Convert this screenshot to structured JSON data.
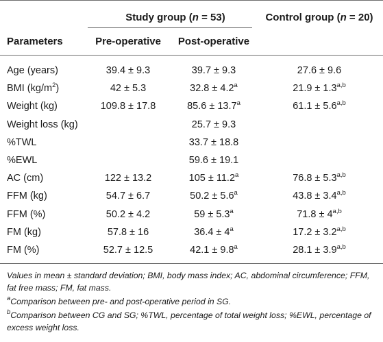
{
  "table": {
    "header": {
      "study_group": "Study group (n = 53)",
      "study_group_text": "Study group (",
      "study_group_n": "n",
      "study_group_rest": " = 53)",
      "control_group_text": "Control group (",
      "control_group_n": "n",
      "control_group_rest": " = 20)",
      "parameters": "Parameters",
      "pre_operative": "Pre-operative",
      "post_operative": "Post-operative"
    },
    "rows": [
      {
        "param": "Age (years)",
        "pre": "39.4 ± 9.3",
        "post": "39.7 ± 9.3",
        "post_sup": "",
        "control": "27.6 ± 9.6",
        "control_sup": ""
      },
      {
        "param": "BMI (kg/m",
        "param_sup": "2",
        "param_tail": ")",
        "pre": "42 ± 5.3",
        "post": "32.8 ± 4.2",
        "post_sup": "a",
        "control": "21.9 ± 1.3",
        "control_sup": "a,b"
      },
      {
        "param": "Weight (kg)",
        "pre": "109.8 ± 17.8",
        "post": "85.6 ± 13.7",
        "post_sup": "a",
        "control": "61.1 ± 5.6",
        "control_sup": "a,b"
      },
      {
        "param": "Weight loss (kg)",
        "pre": "",
        "post": "25.7 ± 9.3",
        "post_sup": "",
        "control": "",
        "control_sup": ""
      },
      {
        "param": "%TWL",
        "pre": "",
        "post": "33.7 ± 18.8",
        "post_sup": "",
        "control": "",
        "control_sup": ""
      },
      {
        "param": "%EWL",
        "pre": "",
        "post": "59.6 ± 19.1",
        "post_sup": "",
        "control": "",
        "control_sup": ""
      },
      {
        "param": "AC (cm)",
        "pre": "122 ± 13.2",
        "post": "105 ± 11.2",
        "post_sup": "a",
        "control": "76.8 ± 5.3",
        "control_sup": "a,b"
      },
      {
        "param": "FFM (kg)",
        "pre": "54.7 ± 6.7",
        "post": "50.2 ± 5.6",
        "post_sup": "a",
        "control": "43.8 ± 3.4",
        "control_sup": "a,b"
      },
      {
        "param": "FFM (%)",
        "pre": "50.2 ± 4.2",
        "post": "59 ± 5.3",
        "post_sup": "a",
        "control": "71.8 ± 4",
        "control_sup": "a,b"
      },
      {
        "param": "FM (kg)",
        "pre": "57.8 ± 16",
        "post": "36.4 ± 4",
        "post_sup": "a",
        "control": "17.2 ± 3.2",
        "control_sup": "a,b"
      },
      {
        "param": "FM (%)",
        "pre": "52.7 ± 12.5",
        "post": "42.1 ± 9.8",
        "post_sup": "a",
        "control": "28.1 ± 3.9",
        "control_sup": "a,b"
      }
    ]
  },
  "footnotes": {
    "main": "Values in mean ± standard deviation; BMI, body mass index; AC, abdominal circumference; FFM, fat free mass; FM, fat mass.",
    "a_mark": "a",
    "a_text": "Comparison between pre- and post-operative period in SG.",
    "b_mark": "b",
    "b_text": "Comparison between CG and SG; %TWL, percentage of total weight loss; %EWL, percentage of excess weight loss."
  }
}
